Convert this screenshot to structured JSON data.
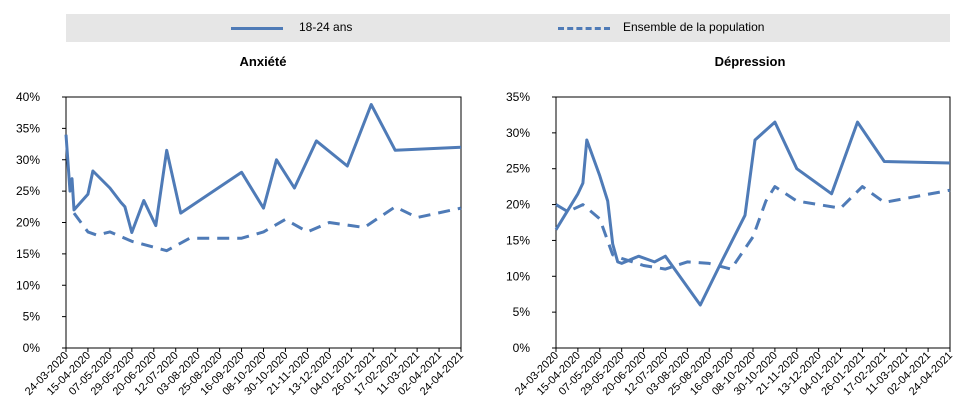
{
  "legend": {
    "series1": "18-24 ans",
    "series2": "Ensemble de la population"
  },
  "colors": {
    "series": "#4f7bb7",
    "legend_bg": "#e6e6e6",
    "axis": "#000000"
  },
  "chart_data": [
    {
      "type": "line",
      "title": "Anxiété",
      "ylim": [
        0,
        40
      ],
      "yticks": [
        "0%",
        "5%",
        "10%",
        "15%",
        "20%",
        "25%",
        "30%",
        "35%",
        "40%"
      ],
      "x": [
        "24-03-2020",
        "15-04-2020",
        "07-05-2020",
        "29-05-2020",
        "20-06-2020",
        "12-07-2020",
        "03-08-2020",
        "25-08-2020",
        "16-09-2020",
        "08-10-2020",
        "30-10-2020",
        "21-11-2020",
        "13-12-2020",
        "04-01-2021",
        "26-01-2021",
        "17-02-2021",
        "11-03-2021",
        "02-04-2021",
        "24-04-2021"
      ],
      "series": [
        {
          "name": "18-24 ans",
          "style": "solid",
          "points": [
            [
              "24-03-2020",
              34
            ],
            [
              "28-03-2020",
              25
            ],
            [
              "30-03-2020",
              27
            ],
            [
              "01-04-2020",
              22
            ],
            [
              "15-04-2020",
              24.5
            ],
            [
              "20-04-2020",
              28.2
            ],
            [
              "07-05-2020",
              25.5
            ],
            [
              "18-05-2020",
              23.2
            ],
            [
              "22-05-2020",
              22.5
            ],
            [
              "29-05-2020",
              18.4
            ],
            [
              "10-06-2020",
              23.5
            ],
            [
              "22-06-2020",
              19.5
            ],
            [
              "03-07-2020",
              31.5
            ],
            [
              "17-07-2020",
              21.5
            ],
            [
              "16-09-2020",
              28
            ],
            [
              "08-10-2020",
              22.3
            ],
            [
              "21-10-2020",
              30
            ],
            [
              "08-11-2020",
              25.5
            ],
            [
              "30-11-2020",
              33
            ],
            [
              "31-12-2020",
              29
            ],
            [
              "24-01-2021",
              38.8
            ],
            [
              "17-02-2021",
              31.5
            ],
            [
              "24-04-2021",
              32
            ]
          ]
        },
        {
          "name": "Ensemble de la population",
          "style": "dashed",
          "points": [
            [
              "01-04-2020",
              21.5
            ],
            [
              "15-04-2020",
              18.5
            ],
            [
              "24-04-2020",
              18
            ],
            [
              "07-05-2020",
              18.5
            ],
            [
              "29-05-2020",
              17
            ],
            [
              "03-07-2020",
              15.5
            ],
            [
              "26-07-2020",
              17.5
            ],
            [
              "25-08-2020",
              17.5
            ],
            [
              "16-09-2020",
              17.5
            ],
            [
              "08-10-2020",
              18.5
            ],
            [
              "30-10-2020",
              20.5
            ],
            [
              "21-11-2020",
              18.5
            ],
            [
              "13-12-2020",
              20
            ],
            [
              "04-01-2021",
              19.5
            ],
            [
              "17-01-2021",
              19.2
            ],
            [
              "17-02-2021",
              22.5
            ],
            [
              "11-03-2021",
              20.8
            ],
            [
              "24-04-2021",
              22.3
            ]
          ]
        }
      ]
    },
    {
      "type": "line",
      "title": "Dépression",
      "ylim": [
        0,
        35
      ],
      "yticks": [
        "0%",
        "5%",
        "10%",
        "15%",
        "20%",
        "25%",
        "30%",
        "35%"
      ],
      "x": [
        "24-03-2020",
        "15-04-2020",
        "07-05-2020",
        "29-05-2020",
        "20-06-2020",
        "12-07-2020",
        "03-08-2020",
        "25-08-2020",
        "16-09-2020",
        "08-10-2020",
        "30-10-2020",
        "21-11-2020",
        "13-12-2020",
        "04-01-2021",
        "26-01-2021",
        "17-02-2021",
        "11-03-2021",
        "02-04-2021",
        "24-04-2021"
      ],
      "series": [
        {
          "name": "18-24 ans",
          "style": "solid",
          "points": [
            [
              "24-03-2020",
              16.5
            ],
            [
              "15-04-2020",
              21.5
            ],
            [
              "20-04-2020",
              23
            ],
            [
              "24-04-2020",
              29
            ],
            [
              "07-05-2020",
              24
            ],
            [
              "15-05-2020",
              20.5
            ],
            [
              "20-05-2020",
              14.5
            ],
            [
              "25-05-2020",
              12
            ],
            [
              "29-05-2020",
              11.8
            ],
            [
              "15-06-2020",
              12.8
            ],
            [
              "01-07-2020",
              12
            ],
            [
              "12-07-2020",
              12.8
            ],
            [
              "16-08-2020",
              6
            ],
            [
              "08-09-2020",
              12.5
            ],
            [
              "30-09-2020",
              18.5
            ],
            [
              "10-10-2020",
              29
            ],
            [
              "30-10-2020",
              31.5
            ],
            [
              "21-11-2020",
              25
            ],
            [
              "26-12-2020",
              21.5
            ],
            [
              "21-01-2021",
              31.5
            ],
            [
              "17-02-2021",
              26
            ],
            [
              "24-04-2021",
              25.8
            ]
          ]
        },
        {
          "name": "Ensemble de la population",
          "style": "dashed",
          "points": [
            [
              "24-03-2020",
              20
            ],
            [
              "05-04-2020",
              19
            ],
            [
              "20-04-2020",
              20
            ],
            [
              "07-05-2020",
              18
            ],
            [
              "20-05-2020",
              13
            ],
            [
              "29-05-2020",
              12.5
            ],
            [
              "20-06-2020",
              11.5
            ],
            [
              "12-07-2020",
              11
            ],
            [
              "03-08-2020",
              12
            ],
            [
              "25-08-2020",
              11.8
            ],
            [
              "16-09-2020",
              11
            ],
            [
              "08-10-2020",
              15.5
            ],
            [
              "21-10-2020",
              20.5
            ],
            [
              "30-10-2020",
              22.5
            ],
            [
              "21-11-2020",
              20.5
            ],
            [
              "13-12-2020",
              20
            ],
            [
              "04-01-2021",
              19.5
            ],
            [
              "26-01-2021",
              22.5
            ],
            [
              "17-02-2021",
              20.3
            ],
            [
              "24-04-2021",
              22
            ]
          ]
        }
      ]
    }
  ]
}
